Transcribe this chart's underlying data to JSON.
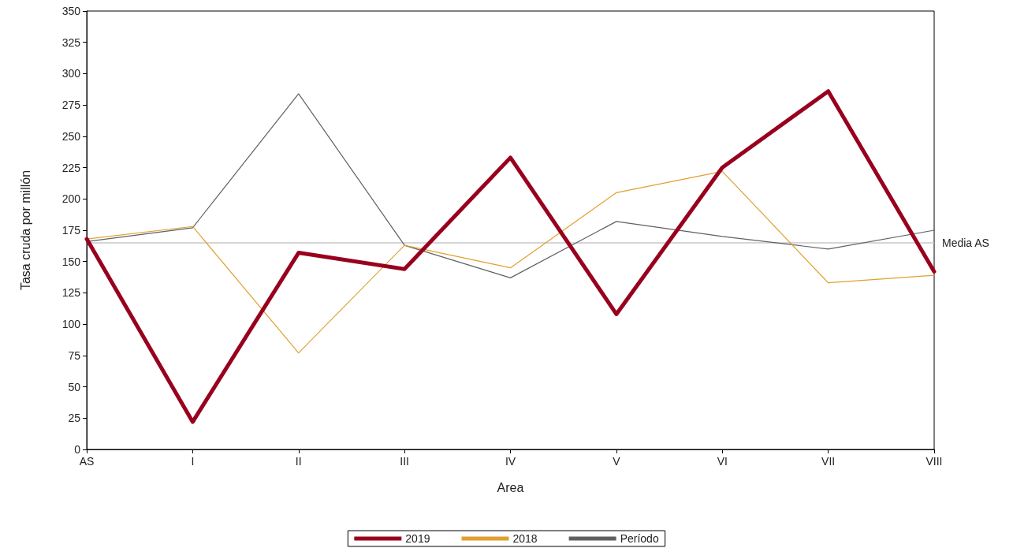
{
  "chart_data": {
    "type": "line",
    "xlabel": "Area",
    "ylabel": "Tasa cruda por millón",
    "categories": [
      "AS",
      "I",
      "II",
      "III",
      "IV",
      "V",
      "VI",
      "VII",
      "VIII"
    ],
    "series": [
      {
        "name": "2019",
        "color": "#98001e",
        "values": [
          168,
          22,
          157,
          144,
          233,
          108,
          225,
          286,
          142
        ]
      },
      {
        "name": "2018",
        "color": "#e0a030",
        "values": [
          168,
          178,
          77,
          163,
          145,
          205,
          222,
          133,
          139
        ]
      },
      {
        "name": "Período",
        "color": "#606060",
        "values": [
          166,
          177,
          284,
          163,
          137,
          182,
          170,
          160,
          175
        ]
      }
    ],
    "ylim": [
      0,
      350
    ],
    "yticks": [
      0,
      25,
      50,
      75,
      100,
      125,
      150,
      175,
      200,
      225,
      250,
      275,
      300,
      325,
      350
    ],
    "ref_lines": [
      {
        "axis": "y",
        "value": 165,
        "label": "Media AS",
        "color": "#c8c8c8"
      }
    ],
    "grid": false,
    "legend": "bottom",
    "marker": "none",
    "line_style": "solid"
  }
}
